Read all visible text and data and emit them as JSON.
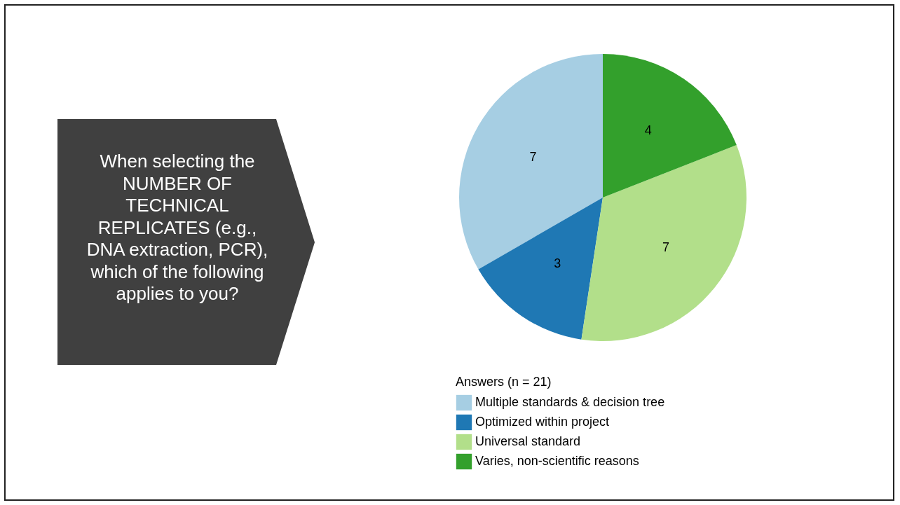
{
  "chart_data": {
    "type": "pie",
    "title": "When selecting the NUMBER OF TECHNICAL REPLICATES (e.g., DNA extraction, PCR), which of the following applies to you?",
    "legend_title": "Answers (n = 21)",
    "categories": [
      "Multiple standards & decision tree",
      "Optimized within project",
      "Universal standard",
      "Varies, non-scientific reasons"
    ],
    "values": [
      7,
      3,
      7,
      4
    ],
    "colors": [
      "#a6cee3",
      "#1f78b4",
      "#b2df8a",
      "#33a02c"
    ],
    "data_labels": true,
    "legend": "bottom"
  }
}
